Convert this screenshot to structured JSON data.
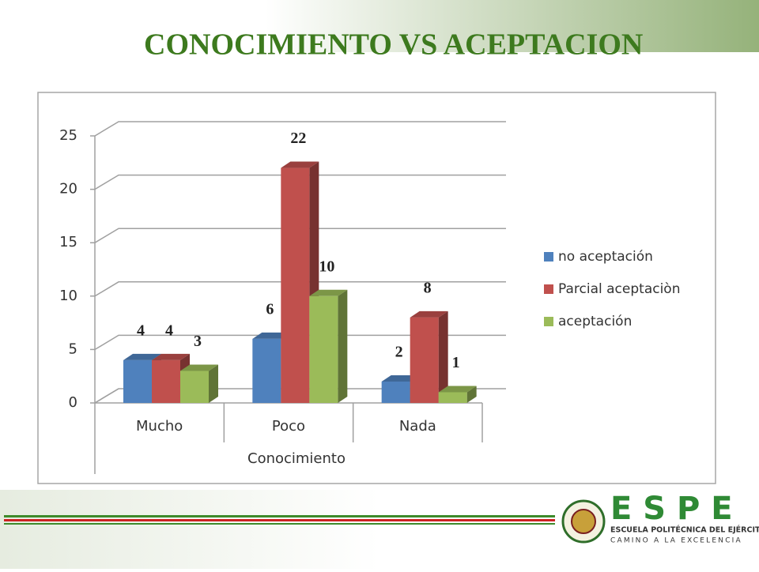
{
  "chart_data": {
    "type": "bar3d",
    "title": "CONOCIMIENTO VS ACEPTACION",
    "x_label": "Conocimiento",
    "categories": [
      "Mucho",
      "Poco",
      "Nada"
    ],
    "series": [
      {
        "name": "no aceptación",
        "color": "#4f81bd",
        "values": [
          4,
          6,
          2
        ]
      },
      {
        "name": "Parcial aceptaciòn",
        "color": "#c0504d",
        "values": [
          4,
          22,
          8
        ]
      },
      {
        "name": "aceptación",
        "color": "#9bbb59",
        "values": [
          3,
          10,
          1
        ]
      }
    ],
    "ylim": [
      0,
      25
    ],
    "yticks": [
      0,
      5,
      10,
      15,
      20,
      25
    ],
    "grid": true,
    "legend": "right"
  },
  "logo": {
    "letters": "E S P E",
    "name": "ESCUELA POLITÉCNICA DEL EJÉRCITO",
    "motto": "CAMINO A LA EXCELENCIA"
  }
}
